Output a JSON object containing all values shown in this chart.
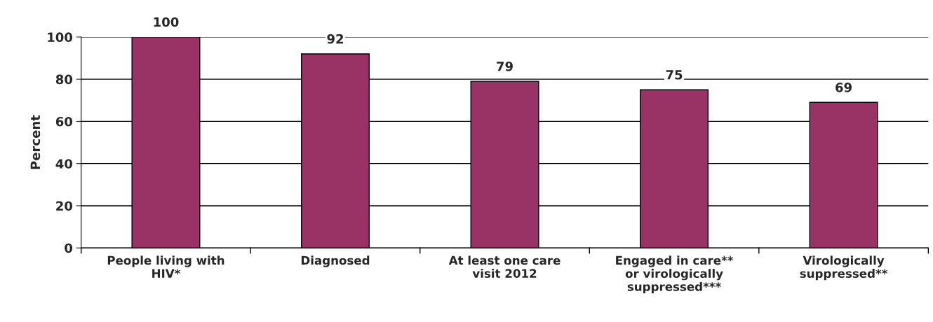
{
  "chart_data": {
    "type": "bar",
    "ylabel": "Percent",
    "categories": [
      "People living with\nHIV*",
      "Diagnosed",
      "At least one care\nvisit 2012",
      "Engaged in care**\nor virologically\nsuppressed***",
      "Virologically\nsuppressed**"
    ],
    "values": [
      100,
      92,
      79,
      75,
      69
    ],
    "color": "#993366",
    "data_labels": true,
    "ylim": [
      0,
      100
    ],
    "yticks": [
      0,
      20,
      40,
      60,
      80,
      100
    ],
    "grid": "y",
    "legend": false
  }
}
